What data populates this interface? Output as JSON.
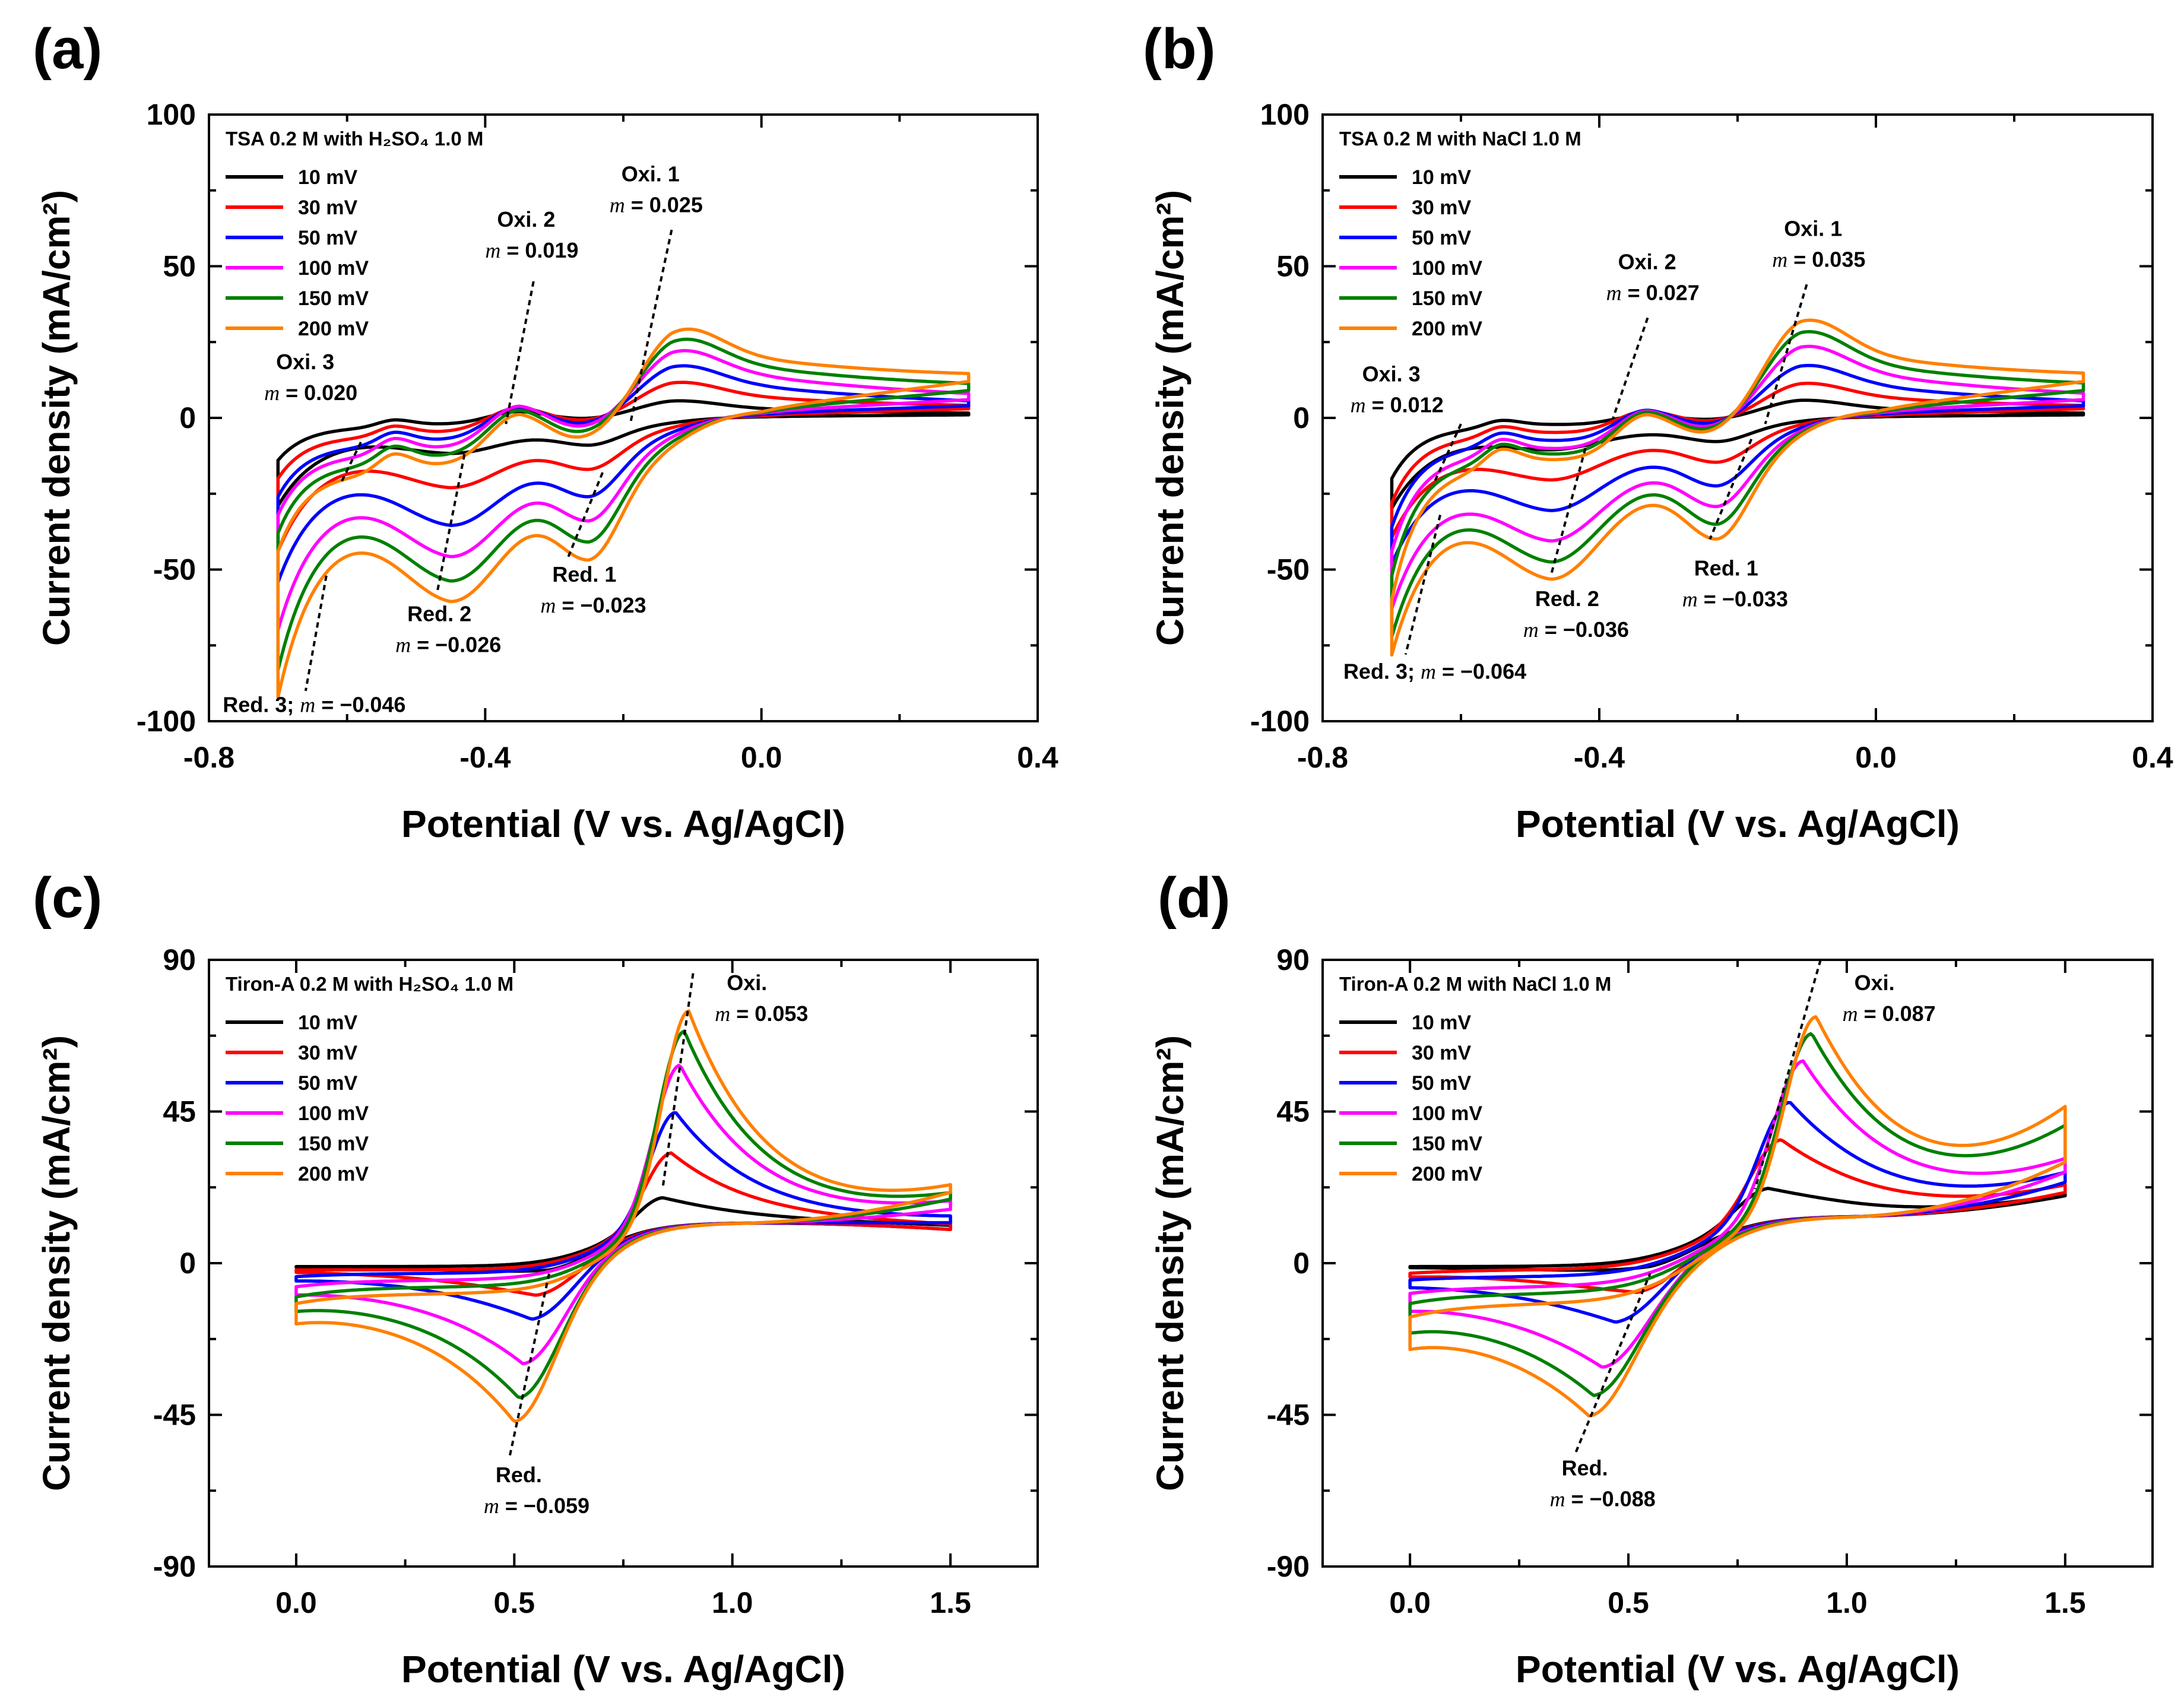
{
  "chart_data": [
    {
      "type": "line",
      "panel_label": "(a)",
      "title": "TSA 0.2 M with H₂SO₄ 1.0 M",
      "xlabel": "Potential (V vs. Ag/AgCl)",
      "ylabel": "Current density (mA/cm²)",
      "xlim": [
        -0.8,
        0.4
      ],
      "ylim": [
        -100,
        100
      ],
      "xticks": [
        "-0.8",
        "-0.4",
        "0.0",
        "0.4"
      ],
      "yticks": [
        "-100",
        "-50",
        "0",
        "50",
        "100"
      ],
      "legend_position": "top-left",
      "cv": {
        "x_start": -0.7,
        "x_end": 0.3,
        "oxidation_peaks": [
          {
            "x": -0.53,
            "amps": [
              2.5,
              3.5,
              4.5,
              5.5,
              6.0,
              6.5
            ],
            "width": 0.025
          },
          {
            "x": -0.35,
            "amps": [
              4.5,
              8.5,
              11.5,
              14.5,
              16.0,
              17.5
            ],
            "width": 0.045
          },
          {
            "x": -0.13,
            "amps": [
              5.0,
              10.0,
              14.5,
              18.5,
              21.5,
              24.0
            ],
            "width": 0.06
          }
        ],
        "reduction_peaks": [
          {
            "x": -0.45,
            "amps": [
              -7,
              -14,
              -22,
              -28,
              -32,
              -35
            ],
            "width": 0.07
          },
          {
            "x": -0.25,
            "amps": [
              -6,
              -11,
              -17,
              -22,
              -26,
              -29
            ],
            "width": 0.045
          }
        ],
        "ox_tail": [
          0.5,
          1.0,
          1.6,
          2.2,
          2.6,
          3.0
        ],
        "baseline_neg": [
          -3,
          -6,
          -9,
          -12,
          -15,
          -18
        ],
        "baseline_pos": [
          1,
          3,
          5,
          7,
          9,
          11
        ],
        "end_fwd": [
          1,
          3,
          4,
          6,
          9,
          12
        ],
        "start_bwd": [
          -27,
          -40,
          -48,
          -62,
          -74,
          -82
        ],
        "start_fwd": [
          -14,
          -20,
          -26,
          -32,
          -38,
          -44
        ]
      },
      "annotations": [
        {
          "label": "Oxi. 1",
          "slope": "0.025"
        },
        {
          "label": "Oxi. 2",
          "slope": "0.019"
        },
        {
          "label": "Oxi. 3",
          "slope": "0.020"
        },
        {
          "label": "Red. 1",
          "slope": "−0.023"
        },
        {
          "label": "Red. 2",
          "slope": "−0.026"
        },
        {
          "label": "Red. 3;",
          "slope": "−0.046"
        }
      ]
    },
    {
      "type": "line",
      "panel_label": "(b)",
      "title": "TSA 0.2 M with NaCl 1.0 M",
      "xlabel": "Potential (V vs. Ag/AgCl)",
      "ylabel": "Current density (mA/cm²)",
      "xlim": [
        -0.8,
        0.4
      ],
      "ylim": [
        -100,
        100
      ],
      "xticks": [
        "-0.8",
        "-0.4",
        "0.0",
        "0.4"
      ],
      "yticks": [
        "-100",
        "-50",
        "0",
        "50",
        "100"
      ],
      "legend_position": "top-left",
      "cv": {
        "x_start": -0.7,
        "x_end": 0.3,
        "oxidation_peaks": [
          {
            "x": -0.54,
            "amps": [
              2.5,
              3.5,
              4.5,
              5.5,
              6.0,
              6.5
            ],
            "width": 0.025
          },
          {
            "x": -0.33,
            "amps": [
              3.5,
              7.5,
              10.5,
              13.0,
              14.5,
              15.5
            ],
            "width": 0.045
          },
          {
            "x": -0.11,
            "amps": [
              5.0,
              9.0,
              13.5,
              18.5,
              22.0,
              24.5
            ],
            "width": 0.06
          }
        ],
        "reduction_peaks": [
          {
            "x": -0.47,
            "amps": [
              -6,
              -12,
              -18,
              -24,
              -28,
              -31
            ],
            "width": 0.07
          },
          {
            "x": -0.23,
            "amps": [
              -5,
              -9,
              -14,
              -18,
              -22,
              -25
            ],
            "width": 0.045
          }
        ],
        "ox_tail": [
          0.5,
          1.0,
          1.6,
          2.2,
          2.6,
          3.0
        ],
        "baseline_neg": [
          -3,
          -6,
          -9,
          -12,
          -14,
          -16
        ],
        "baseline_pos": [
          1,
          3,
          5,
          7,
          9,
          11
        ],
        "end_fwd": [
          1,
          3,
          4,
          6,
          9,
          12
        ],
        "start_bwd": [
          -28,
          -36,
          -43,
          -56,
          -64,
          -69
        ],
        "start_fwd": [
          -20,
          -28,
          -36,
          -44,
          -52,
          -60
        ]
      },
      "annotations": [
        {
          "label": "Oxi. 1",
          "slope": "0.035"
        },
        {
          "label": "Oxi. 2",
          "slope": "0.027"
        },
        {
          "label": "Oxi. 3",
          "slope": "0.012"
        },
        {
          "label": "Red. 1",
          "slope": "−0.033"
        },
        {
          "label": "Red. 2",
          "slope": "−0.036"
        },
        {
          "label": "Red. 3;",
          "slope": "−0.064"
        }
      ]
    },
    {
      "type": "line",
      "panel_label": "(c)",
      "title": "Tiron-A 0.2 M with H₂SO₄ 1.0 M",
      "xlabel": "Potential (V vs. Ag/AgCl)",
      "ylabel": "Current density (mA/cm²)",
      "xlim": [
        -0.2,
        1.7
      ],
      "ylim": [
        -90,
        90
      ],
      "xticks": [
        "0.0",
        "0.5",
        "1.0",
        "1.5"
      ],
      "yticks": [
        "-90",
        "-45",
        "0",
        "45",
        "90"
      ],
      "legend_position": "top-left",
      "cv": {
        "x_start": 0.0,
        "x_end": 1.5,
        "oxidation_peaks": [
          {
            "x": [
              0.84,
              0.86,
              0.87,
              0.88,
              0.89,
              0.9
            ],
            "amps": [
              9,
              22,
              34,
              48,
              58,
              64
            ],
            "width": 0.06,
            "tail": 0.18
          }
        ],
        "reduction_peaks": [
          {
            "x": [
              0.58,
              0.55,
              0.54,
              0.52,
              0.51,
              0.5
            ],
            "amps": [
              -3,
              -9,
              -15,
              -26,
              -34,
              -39
            ],
            "width": 0.09,
            "tail": 0.22
          }
        ],
        "plateau": 12,
        "s_center": 0.7,
        "s_width": 0.07,
        "baseline_neg": [
          -1,
          -2,
          -3,
          -5,
          -7,
          -9
        ],
        "end_fwd": [
          11,
          11,
          13,
          17,
          19,
          21
        ],
        "end_bwd": [
          10,
          10,
          12,
          16,
          19,
          21
        ],
        "start_bwd": [
          -1,
          -2,
          -4,
          -7,
          -11,
          -14
        ],
        "start_fwd": [
          -1,
          -2,
          -4,
          -7,
          -10,
          -12
        ]
      },
      "annotations": [
        {
          "label": "Oxi.",
          "slope": "0.053"
        },
        {
          "label": "Red.",
          "slope": "−0.059"
        }
      ]
    },
    {
      "type": "line",
      "panel_label": "(d)",
      "title": "Tiron-A 0.2 M with NaCl 1.0 M",
      "xlabel": "Potential (V vs. Ag/AgCl)",
      "ylabel": "Current density (mA/cm²)",
      "xlim": [
        -0.2,
        1.7
      ],
      "ylim": [
        -90,
        90
      ],
      "xticks": [
        "0.0",
        "0.5",
        "1.0",
        "1.5"
      ],
      "yticks": [
        "-90",
        "-45",
        "0",
        "45",
        "90"
      ],
      "legend_position": "top-left",
      "cv": {
        "x_start": 0.0,
        "x_end": 1.5,
        "oxidation_peaks": [
          {
            "x": [
              0.82,
              0.85,
              0.87,
              0.9,
              0.92,
              0.93
            ],
            "amps": [
              10,
              24,
              35,
              47,
              55,
              60
            ],
            "width": 0.07,
            "tail": 0.22
          }
        ],
        "reduction_peaks": [
          {
            "x": [
              0.55,
              0.52,
              0.47,
              0.44,
              0.42,
              0.41
            ],
            "amps": [
              -3,
              -9,
              -15,
              -25,
              -31,
              -34
            ],
            "width": 0.1,
            "tail": 0.25
          }
        ],
        "plateau": 14,
        "s_center": 0.66,
        "s_width": 0.08,
        "baseline_neg": [
          -1,
          -2,
          -4,
          -7,
          -9,
          -12
        ],
        "end_fwd": [
          20,
          22,
          25,
          28,
          37,
          42
        ],
        "end_bwd": [
          20,
          21,
          24,
          27,
          30,
          30
        ],
        "start_bwd": [
          -1,
          -3,
          -5,
          -10,
          -15,
          -19
        ],
        "start_fwd": [
          -1,
          -3,
          -5,
          -9,
          -12,
          -16
        ]
      },
      "annotations": [
        {
          "label": "Oxi.",
          "slope": "0.087"
        },
        {
          "label": "Red.",
          "slope": "−0.088"
        }
      ]
    }
  ],
  "legend": [
    {
      "label": "10 mV",
      "color": "#000000"
    },
    {
      "label": "30 mV",
      "color": "#ff0000"
    },
    {
      "label": "50 mV",
      "color": "#0000ff"
    },
    {
      "label": "100 mV",
      "color": "#ff00ff"
    },
    {
      "label": "150 mV",
      "color": "#008000"
    },
    {
      "label": "200 mV",
      "color": "#ff8000"
    }
  ],
  "slope_symbol": "m"
}
